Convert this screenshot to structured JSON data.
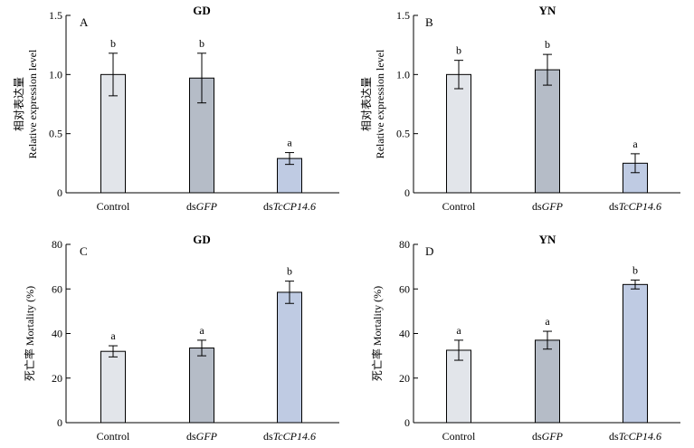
{
  "chart_data": [
    {
      "type": "bar",
      "panel": "A",
      "title": "GD",
      "ylabel_zh": "相对表达量",
      "ylabel_en": "Relative expression level",
      "ylim": [
        0,
        1.5
      ],
      "yticks": [
        "0",
        "0.5",
        "1.0",
        "1.5"
      ],
      "categories": [
        {
          "prefix": "",
          "italic": "",
          "plain": "Control"
        },
        {
          "prefix": "ds",
          "italic": "GFP",
          "plain": ""
        },
        {
          "prefix": "ds",
          "italic": "TcCP14.6",
          "plain": ""
        }
      ],
      "values": [
        1.0,
        0.97,
        0.29
      ],
      "errors": [
        0.18,
        0.21,
        0.05
      ],
      "letters": [
        "b",
        "b",
        "a"
      ],
      "colors": [
        "#e2e5ea",
        "#b5bcc7",
        "#bfcbe3"
      ]
    },
    {
      "type": "bar",
      "panel": "B",
      "title": "YN",
      "ylabel_zh": "相对表达量",
      "ylabel_en": "Relative expression level",
      "ylim": [
        0,
        1.5
      ],
      "yticks": [
        "0",
        "0.5",
        "1.0",
        "1.5"
      ],
      "categories": [
        {
          "prefix": "",
          "italic": "",
          "plain": "Control"
        },
        {
          "prefix": "ds",
          "italic": "GFP",
          "plain": ""
        },
        {
          "prefix": "ds",
          "italic": "TcCP14.6",
          "plain": ""
        }
      ],
      "values": [
        1.0,
        1.04,
        0.25
      ],
      "errors": [
        0.12,
        0.13,
        0.08
      ],
      "letters": [
        "b",
        "b",
        "a"
      ],
      "colors": [
        "#e2e5ea",
        "#b5bcc7",
        "#bfcbe3"
      ]
    },
    {
      "type": "bar",
      "panel": "C",
      "title": "GD",
      "ylabel_zh": "死亡率",
      "ylabel_en": "Mortality (%)",
      "ylim": [
        0,
        80
      ],
      "yticks": [
        "0",
        "20",
        "40",
        "60",
        "80"
      ],
      "categories": [
        {
          "prefix": "",
          "italic": "",
          "plain": "Control"
        },
        {
          "prefix": "ds",
          "italic": "GFP",
          "plain": ""
        },
        {
          "prefix": "ds",
          "italic": "TcCP14.6",
          "plain": ""
        }
      ],
      "values": [
        32,
        33.5,
        58.5
      ],
      "errors": [
        2.5,
        3.5,
        5
      ],
      "letters": [
        "a",
        "a",
        "b"
      ],
      "colors": [
        "#e2e5ea",
        "#b5bcc7",
        "#bfcbe3"
      ]
    },
    {
      "type": "bar",
      "panel": "D",
      "title": "YN",
      "ylabel_zh": "死亡率",
      "ylabel_en": "Mortality (%)",
      "ylim": [
        0,
        80
      ],
      "yticks": [
        "0",
        "20",
        "40",
        "60",
        "80"
      ],
      "categories": [
        {
          "prefix": "",
          "italic": "",
          "plain": "Control"
        },
        {
          "prefix": "ds",
          "italic": "GFP",
          "plain": ""
        },
        {
          "prefix": "ds",
          "italic": "TcCP14.6",
          "plain": ""
        }
      ],
      "values": [
        32.5,
        37,
        62
      ],
      "errors": [
        4.5,
        4,
        2
      ],
      "letters": [
        "a",
        "a",
        "b"
      ],
      "colors": [
        "#e2e5ea",
        "#b5bcc7",
        "#bfcbe3"
      ]
    }
  ]
}
